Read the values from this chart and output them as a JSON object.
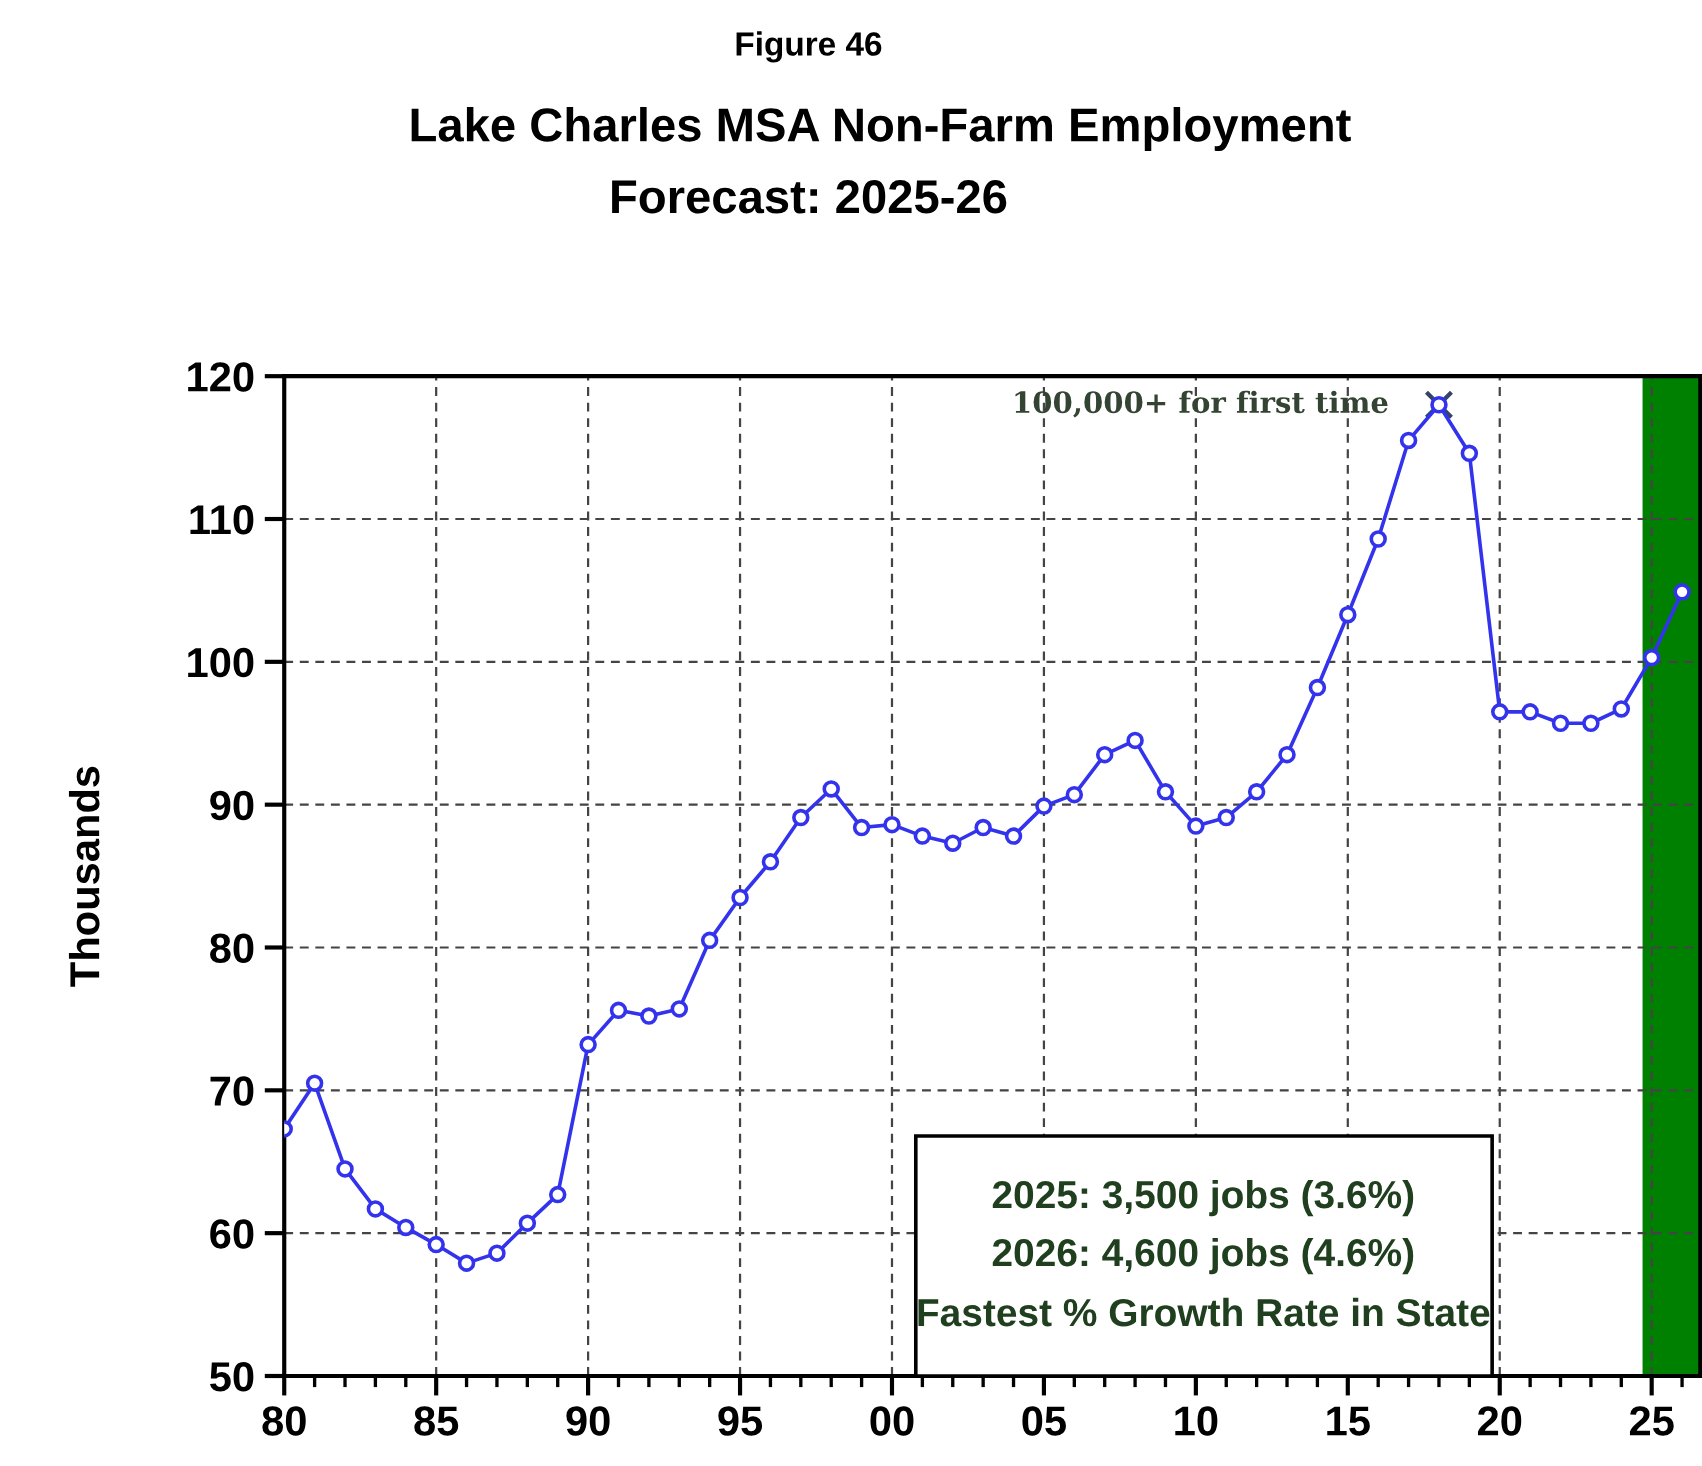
{
  "chart_data": {
    "type": "line",
    "title": "Lake Charles MSA Non-Farm Employment",
    "subtitle": "Forecast: 2025-26",
    "ylabel": "Thousands",
    "annotations": [
      "Figure 46",
      {
        "text": "100,000+ for first time",
        "x": 2018,
        "y": 118.0
      },
      "2025: 3,500 jobs (3.6%)",
      "2026: 4,600 jobs (4.6%)",
      "Fastest % Growth Rate in State"
    ],
    "x": [
      1980,
      1981,
      1982,
      1983,
      1984,
      1985,
      1986,
      1987,
      1988,
      1989,
      1990,
      1991,
      1992,
      1993,
      1994,
      1995,
      1996,
      1997,
      1998,
      1999,
      2000,
      2001,
      2002,
      2003,
      2004,
      2005,
      2006,
      2007,
      2008,
      2009,
      2010,
      2011,
      2012,
      2013,
      2014,
      2015,
      2016,
      2017,
      2018,
      2019,
      2020,
      2021,
      2022,
      2023,
      2024,
      2025,
      2026
    ],
    "series": [
      {
        "color": "#3333ee",
        "values": [
          67.3,
          70.5,
          64.5,
          61.7,
          60.4,
          59.2,
          57.9,
          58.6,
          60.7,
          62.7,
          73.2,
          75.6,
          75.2,
          75.7,
          80.5,
          83.5,
          86.0,
          89.1,
          91.1,
          88.4,
          88.6,
          87.8,
          87.3,
          88.4,
          87.8,
          89.9,
          90.7,
          93.5,
          94.5,
          90.9,
          88.5,
          89.1,
          90.9,
          93.5,
          98.2,
          103.3,
          108.6,
          115.5,
          118.0,
          114.6,
          96.5,
          96.5,
          95.7,
          95.7,
          96.7,
          100.3,
          104.9
        ]
      }
    ],
    "xlim": [
      1980,
      2026.6
    ],
    "ylim": [
      50,
      120
    ],
    "xticks": [
      {
        "value": 1980,
        "label": "80"
      },
      {
        "value": 1985,
        "label": "85"
      },
      {
        "value": 1990,
        "label": "90"
      },
      {
        "value": 1995,
        "label": "95"
      },
      {
        "value": 2000,
        "label": "00"
      },
      {
        "value": 2005,
        "label": "05"
      },
      {
        "value": 2010,
        "label": "10"
      },
      {
        "value": 2015,
        "label": "15"
      },
      {
        "value": 2020,
        "label": "20"
      },
      {
        "value": 2025,
        "label": "25"
      }
    ],
    "yticks": [
      50,
      60,
      70,
      80,
      90,
      100,
      110,
      120
    ],
    "bands": [
      {
        "axis": "x",
        "from": 2024.7,
        "to": 2026.6,
        "color": "#008000"
      }
    ],
    "grid": true,
    "marker": "circle",
    "line_style": "solid",
    "legend": false
  }
}
